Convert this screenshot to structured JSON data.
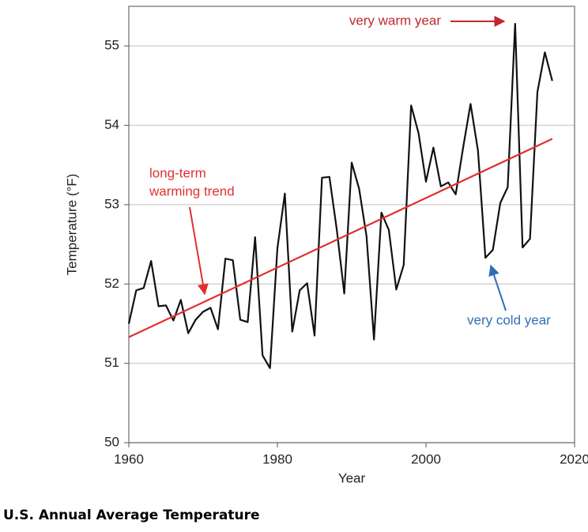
{
  "chart_data": {
    "type": "line",
    "title": "U.S. Annual Average Temperature",
    "xlabel": "Year",
    "ylabel": "Temperature (°F)",
    "xlim": [
      1960,
      2020
    ],
    "xticks": [
      1960,
      1980,
      2000,
      2020
    ],
    "ylim": [
      50,
      55.5
    ],
    "yticks": [
      50,
      51,
      52,
      53,
      54,
      55
    ],
    "grid": true,
    "series": [
      {
        "color": "#111111",
        "x": [
          1960,
          1961,
          1962,
          1963,
          1964,
          1965,
          1966,
          1967,
          1968,
          1969,
          1970,
          1971,
          1972,
          1973,
          1974,
          1975,
          1976,
          1977,
          1978,
          1979,
          1980,
          1981,
          1982,
          1983,
          1984,
          1985,
          1986,
          1987,
          1988,
          1989,
          1990,
          1991,
          1992,
          1993,
          1994,
          1995,
          1996,
          1997,
          1998,
          1999,
          2000,
          2001,
          2002,
          2003,
          2004,
          2005,
          2006,
          2007,
          2008,
          2009,
          2010,
          2011,
          2012,
          2013,
          2014,
          2015,
          2016,
          2017
        ],
        "values": [
          51.5,
          51.92,
          51.95,
          52.29,
          51.72,
          51.73,
          51.54,
          51.8,
          51.38,
          51.55,
          51.65,
          51.7,
          51.43,
          52.32,
          52.3,
          51.55,
          51.52,
          52.59,
          51.1,
          50.94,
          52.45,
          53.14,
          51.4,
          51.92,
          52.01,
          51.35,
          53.34,
          53.35,
          52.68,
          51.88,
          53.53,
          53.2,
          52.6,
          51.3,
          52.9,
          52.68,
          51.93,
          52.24,
          54.25,
          53.9,
          53.29,
          53.72,
          53.23,
          53.28,
          53.13,
          53.72,
          54.27,
          53.68,
          52.33,
          52.43,
          53.02,
          53.22,
          55.28,
          52.46,
          52.57,
          54.42,
          54.92,
          54.56
        ]
      },
      {
        "color": "#e03030",
        "x": [
          1960,
          2017
        ],
        "values": [
          51.33,
          53.83
        ]
      }
    ],
    "annotations": [
      {
        "lines": [
          "very warm year"
        ],
        "color": "#c0282d"
      },
      {
        "lines": [
          "long-term",
          "warming trend"
        ],
        "color": "#e03030"
      },
      {
        "lines": [
          "very cold year"
        ],
        "color": "#2f6fb5"
      }
    ]
  }
}
